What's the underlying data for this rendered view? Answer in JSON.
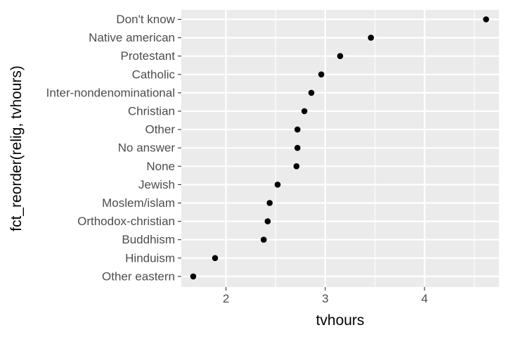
{
  "chart_data": {
    "type": "scatter",
    "xlabel": "tvhours",
    "ylabel": "fct_reorder(relig, tvhours)",
    "xlim": [
      1.55,
      4.75
    ],
    "x_ticks": [
      2,
      3,
      4
    ],
    "x_tick_labels": [
      "2",
      "3",
      "4"
    ],
    "categories": [
      "Don't know",
      "Native american",
      "Protestant",
      "Catholic",
      "Inter-nondenominational",
      "Christian",
      "Other",
      "No answer",
      "None",
      "Jewish",
      "Moslem/islam",
      "Orthodox-christian",
      "Buddhism",
      "Hinduism",
      "Other eastern"
    ],
    "values": [
      4.62,
      3.46,
      3.15,
      2.96,
      2.86,
      2.79,
      2.72,
      2.72,
      2.71,
      2.52,
      2.44,
      2.42,
      2.38,
      1.89,
      1.67
    ],
    "grid": true,
    "legend": "none",
    "colors": {
      "panel": "#ebebeb",
      "grid": "#ffffff",
      "point": "#000000",
      "tick_text": "#4d4d4d"
    }
  }
}
